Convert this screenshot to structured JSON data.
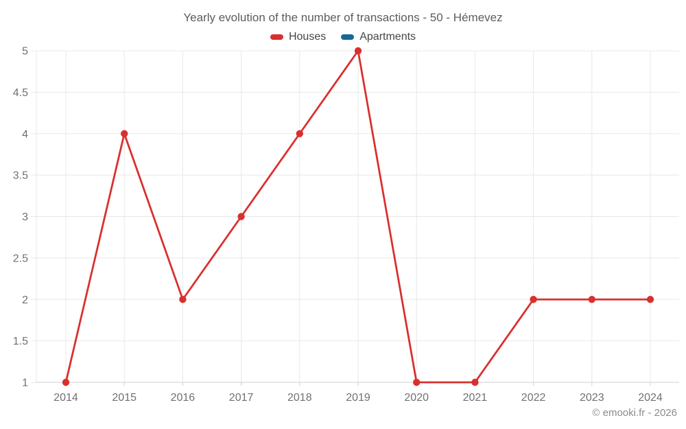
{
  "watermark": "© emooki.fr - 2026",
  "legend": {
    "items": [
      {
        "label": "Houses",
        "color": "#d9302e"
      },
      {
        "label": "Apartments",
        "color": "#166996"
      }
    ]
  },
  "chart_data": {
    "type": "line",
    "title": "Yearly evolution of the number of transactions - 50 - Hémevez",
    "x": [
      2014,
      2015,
      2016,
      2017,
      2018,
      2019,
      2020,
      2021,
      2022,
      2023,
      2024
    ],
    "series": [
      {
        "name": "Houses",
        "color": "#d9302e",
        "values": [
          1,
          4,
          2,
          3,
          4,
          5,
          1,
          1,
          2,
          2,
          2
        ]
      },
      {
        "name": "Apartments",
        "color": "#166996",
        "values": []
      }
    ],
    "xlabel": "",
    "ylabel": "",
    "ylim": [
      1,
      5
    ],
    "ytick_step": 0.5,
    "grid": true,
    "legend_position": "top",
    "marker": "circle",
    "gridline_color": "#e8e8e8",
    "axis_line_color": "#cfcfcf",
    "axis_label_color": "#707070"
  }
}
